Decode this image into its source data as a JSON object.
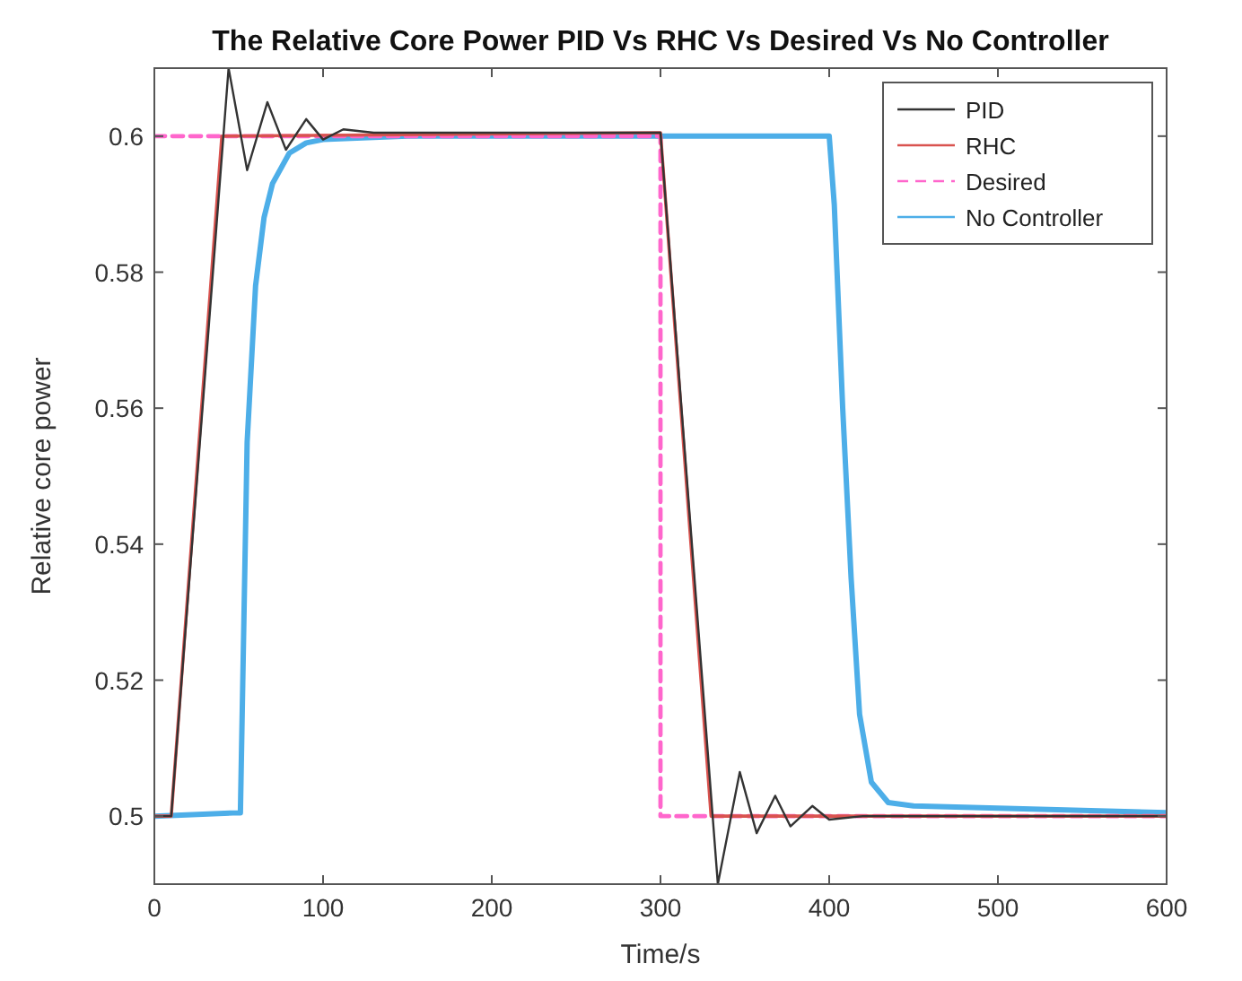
{
  "chart_data": {
    "type": "line",
    "title": "The Relative Core Power PID Vs RHC Vs Desired Vs No Controller",
    "xlabel": "Time/s",
    "ylabel": "Relative core power",
    "xlim": [
      0,
      600
    ],
    "ylim": [
      0.49,
      0.61
    ],
    "xticks": [
      0,
      100,
      200,
      300,
      400,
      500,
      600
    ],
    "yticks": [
      0.5,
      0.52,
      0.54,
      0.56,
      0.58,
      0.6
    ],
    "grid": false,
    "legend": "top right",
    "series": [
      {
        "name": "PID",
        "color": "#333333",
        "x": [
          0,
          10,
          44,
          55,
          67,
          78,
          90,
          100,
          112,
          130,
          300,
          334,
          347,
          357,
          368,
          377,
          390,
          400,
          420,
          600
        ],
        "values": [
          0.5,
          0.5,
          0.61,
          0.595,
          0.605,
          0.598,
          0.6025,
          0.5995,
          0.601,
          0.6005,
          0.6005,
          0.49,
          0.5065,
          0.4975,
          0.503,
          0.4985,
          0.5015,
          0.4995,
          0.5,
          0.5
        ]
      },
      {
        "name": "RHC",
        "color": "#d9534f",
        "x": [
          0,
          10,
          40,
          300,
          330,
          600
        ],
        "values": [
          0.5,
          0.5,
          0.6,
          0.6005,
          0.5,
          0.5
        ]
      },
      {
        "name": "Desired",
        "color": "#ff66cc",
        "line_style": "dashed",
        "x": [
          0,
          300,
          300,
          600
        ],
        "values": [
          0.6,
          0.6,
          0.5,
          0.5
        ]
      },
      {
        "name": "No Controller",
        "color": "#4daee8",
        "x": [
          0,
          50,
          51,
          55,
          60,
          65,
          70,
          80,
          90,
          100,
          150,
          400,
          403,
          408,
          413,
          418,
          425,
          435,
          450,
          600
        ],
        "values": [
          0.5,
          0.5005,
          0.5005,
          0.555,
          0.578,
          0.588,
          0.593,
          0.5975,
          0.599,
          0.5995,
          0.6,
          0.6,
          0.59,
          0.56,
          0.535,
          0.515,
          0.505,
          0.502,
          0.5015,
          0.5005
        ]
      }
    ]
  }
}
